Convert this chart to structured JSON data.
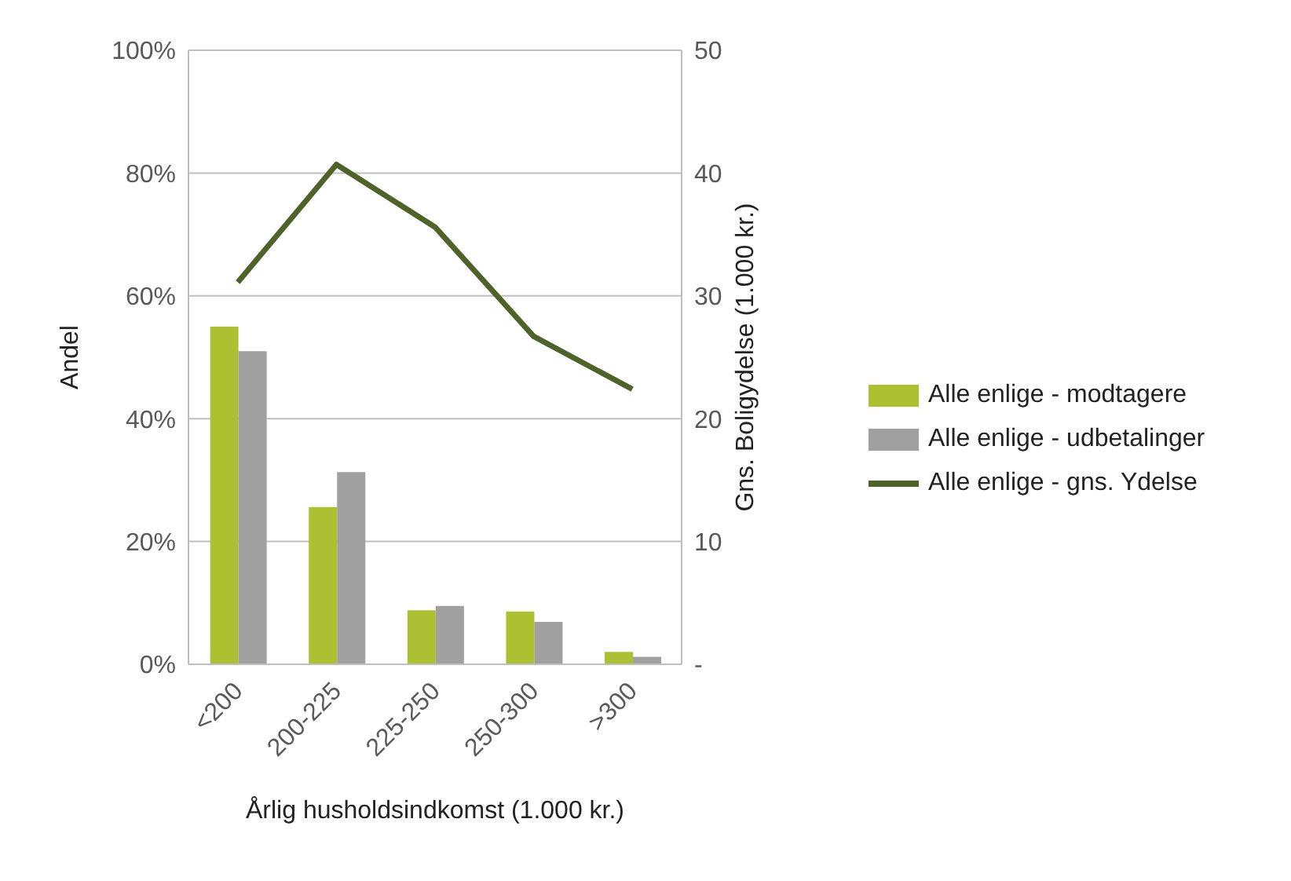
{
  "chart_data": {
    "type": "bar",
    "categories": [
      "<200",
      "200-225",
      "225-250",
      "250-300",
      ">300"
    ],
    "xlabel": "Årlig husholdsindkomst (1.000 kr.)",
    "ylabel": "Andel",
    "y2label": "Gns. Boligydelse (1.000 kr.)",
    "series": [
      {
        "name": "Alle enlige - modtagere",
        "color": "#abc132",
        "values": [
          55,
          25.6,
          8.8,
          8.6,
          2
        ]
      },
      {
        "name": "Alle enlige - udbetalinger",
        "color": "#a0a0a0",
        "values": [
          51,
          31.3,
          9.5,
          6.9,
          1.2
        ]
      },
      {
        "name": "Alle enlige - gns. Ydelse",
        "type": "line",
        "axis": "y2",
        "color": "#4f6228",
        "values": [
          31.1,
          40.7,
          35.6,
          26.7,
          22.4
        ]
      }
    ],
    "ylim": [
      0,
      100
    ],
    "yticks": [
      {
        "value": 0,
        "label": "0%"
      },
      {
        "value": 20,
        "label": "20%"
      },
      {
        "value": 40,
        "label": "40%"
      },
      {
        "value": 60,
        "label": "60%"
      },
      {
        "value": 80,
        "label": "80%"
      },
      {
        "value": 100,
        "label": "100%"
      }
    ],
    "y2lim": [
      0,
      50
    ],
    "y2ticks": [
      {
        "value": 0,
        "label": "-"
      },
      10,
      20,
      30,
      40,
      50
    ],
    "grid": "y",
    "legend": "right",
    "marker": "none",
    "line_style": "solid"
  }
}
